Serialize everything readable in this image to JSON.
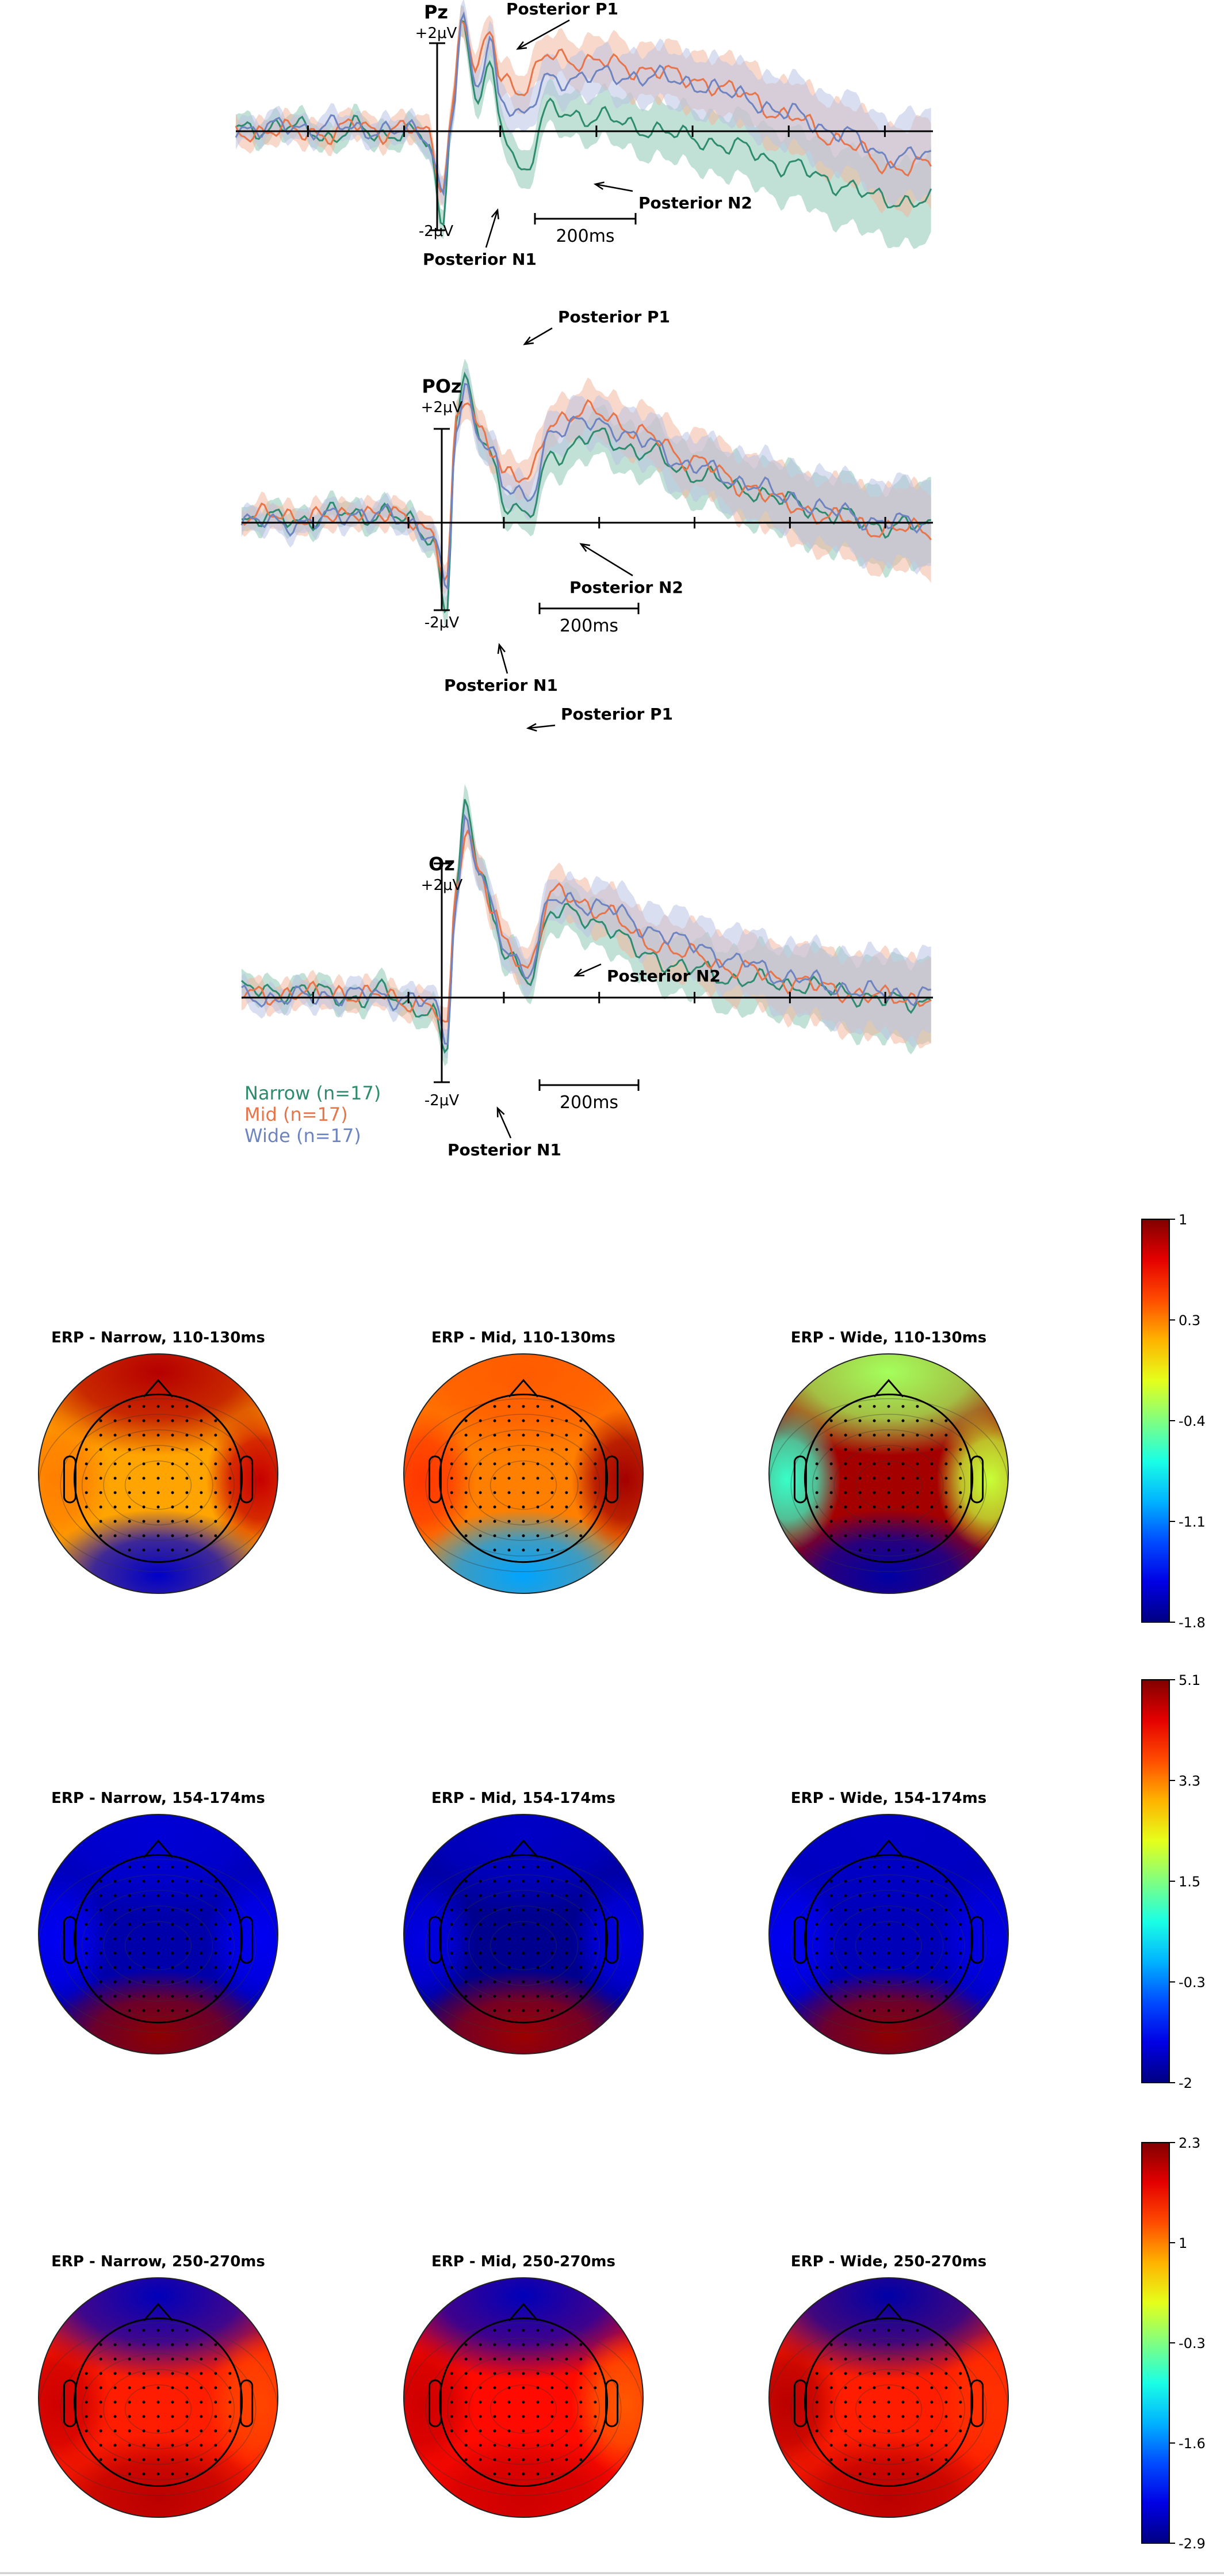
{
  "colors": {
    "narrow": "#2e8b6e",
    "mid": "#e8744a",
    "wide": "#6e84c0",
    "narrow_band": "#8fc9b5",
    "mid_band": "#f2b8a0",
    "wide_band": "#bac5e4",
    "axis": "#000000"
  },
  "legend": [
    {
      "key": "narrow",
      "label": "Narrow (n=17)"
    },
    {
      "key": "mid",
      "label": "Mid (n=17)"
    },
    {
      "key": "wide",
      "label": "Wide (n=17)"
    }
  ],
  "chart_data": [
    {
      "type": "line",
      "channel": "Pz",
      "amp_plus": "+2μV",
      "amp_minus": "-2μV",
      "time_bar": "200ms",
      "annotations": [
        {
          "label": "Posterior P1"
        },
        {
          "label": "Posterior N1"
        },
        {
          "label": "Posterior N2"
        }
      ],
      "x_unit": "ms",
      "x": [
        -200,
        -150,
        -100,
        -50,
        0,
        50,
        80,
        100,
        120,
        150,
        180,
        200,
        250,
        300,
        400,
        500,
        600,
        700,
        800,
        900,
        1000
      ],
      "series": [
        {
          "name": "Narrow (n=17)",
          "values": [
            0.1,
            -0.2,
            0.1,
            -0.1,
            0.0,
            -0.3,
            -2.8,
            0.8,
            3.2,
            0.9,
            1.8,
            0.2,
            -1.2,
            0.6,
            0.4,
            0.1,
            -0.2,
            -0.5,
            -1.0,
            -1.5,
            -2.0
          ]
        },
        {
          "name": "Mid (n=17)",
          "values": [
            0.0,
            -0.1,
            0.2,
            0.0,
            0.1,
            -0.1,
            -1.6,
            0.6,
            3.4,
            1.6,
            3.0,
            1.6,
            1.2,
            2.2,
            2.0,
            1.8,
            1.5,
            1.1,
            0.4,
            -0.2,
            -1.0
          ]
        },
        {
          "name": "Wide (n=17)",
          "values": [
            0.1,
            0.2,
            0.0,
            0.1,
            0.0,
            -0.2,
            -1.8,
            0.5,
            3.2,
            1.2,
            2.6,
            1.0,
            0.4,
            1.5,
            1.6,
            1.6,
            1.4,
            1.0,
            0.5,
            0.0,
            -0.7
          ]
        }
      ]
    },
    {
      "type": "line",
      "channel": "POz",
      "amp_plus": "+2μV",
      "amp_minus": "-2μV",
      "time_bar": "200ms",
      "annotations": [
        {
          "label": "Posterior P1"
        },
        {
          "label": "Posterior N1"
        },
        {
          "label": "Posterior N2"
        }
      ],
      "x_unit": "ms",
      "x": [
        -200,
        -150,
        -100,
        -50,
        0,
        50,
        80,
        100,
        120,
        150,
        180,
        200,
        250,
        300,
        400,
        500,
        600,
        700,
        800,
        900,
        1000
      ],
      "series": [
        {
          "name": "Narrow (n=17)",
          "values": [
            0.1,
            0.3,
            0.2,
            0.3,
            0.0,
            -0.4,
            -2.6,
            3.0,
            4.0,
            2.6,
            1.8,
            0.6,
            0.1,
            2.0,
            2.5,
            2.0,
            1.4,
            1.0,
            0.6,
            0.2,
            -0.1
          ]
        },
        {
          "name": "Mid (n=17)",
          "values": [
            0.2,
            0.1,
            0.4,
            0.2,
            0.1,
            -0.2,
            -1.8,
            2.8,
            3.6,
            2.7,
            2.2,
            1.4,
            1.2,
            3.0,
            3.2,
            2.5,
            1.8,
            1.1,
            0.5,
            0.1,
            -0.2
          ]
        },
        {
          "name": "Wide (n=17)",
          "values": [
            0.0,
            0.2,
            0.3,
            0.2,
            0.0,
            -0.3,
            -2.0,
            2.6,
            3.8,
            2.6,
            2.0,
            1.0,
            0.6,
            2.7,
            2.9,
            2.3,
            1.6,
            1.2,
            0.7,
            0.3,
            0.0
          ]
        }
      ]
    },
    {
      "type": "line",
      "channel": "Oz",
      "amp_plus": "+2μV",
      "amp_minus": "-2μV",
      "time_bar": "200ms",
      "annotations": [
        {
          "label": "Posterior P1"
        },
        {
          "label": "Posterior N2"
        },
        {
          "label": "Posterior N1"
        }
      ],
      "x_unit": "ms",
      "x": [
        -200,
        -150,
        -100,
        -50,
        0,
        50,
        80,
        100,
        120,
        150,
        180,
        200,
        250,
        300,
        400,
        500,
        600,
        700,
        800,
        900,
        1000
      ],
      "series": [
        {
          "name": "Narrow (n=17)",
          "values": [
            0.2,
            0.1,
            -0.1,
            0.2,
            -0.2,
            -0.5,
            -1.6,
            3.0,
            5.8,
            3.8,
            2.2,
            1.2,
            0.6,
            2.5,
            2.2,
            1.2,
            0.8,
            0.5,
            0.4,
            0.2,
            -0.1
          ]
        },
        {
          "name": "Mid (n=17)",
          "values": [
            0.1,
            0.2,
            0.0,
            0.1,
            -0.1,
            -0.3,
            -1.0,
            3.2,
            5.0,
            3.6,
            2.4,
            1.5,
            0.9,
            3.0,
            2.6,
            1.6,
            1.2,
            0.8,
            0.5,
            0.2,
            0.0
          ]
        },
        {
          "name": "Wide (n=17)",
          "values": [
            0.0,
            0.1,
            0.1,
            0.0,
            0.0,
            -0.2,
            -1.2,
            2.8,
            5.2,
            3.6,
            2.3,
            1.4,
            0.8,
            2.8,
            2.7,
            2.0,
            1.5,
            1.0,
            0.6,
            0.3,
            0.1
          ]
        }
      ]
    },
    {
      "type": "heatmap",
      "rows": [
        {
          "colorbar_ticks": [
            "1",
            "0.3",
            "-0.4",
            "-1.1",
            "-1.8"
          ],
          "range": [
            -1.8,
            1.0
          ],
          "maps": [
            {
              "title": "ERP - Narrow, 110-130ms",
              "front": 0.85,
              "center": 0.2,
              "occipital": -1.6,
              "left": 0.3,
              "right": 0.8
            },
            {
              "title": "ERP - Mid, 110-130ms",
              "front": 0.4,
              "center": 0.3,
              "occipital": -1.0,
              "left": 0.5,
              "right": 0.9
            },
            {
              "title": "ERP - Wide, 110-130ms",
              "front": -0.3,
              "center": 0.9,
              "occipital": -1.7,
              "left": -0.6,
              "right": -0.2
            }
          ]
        },
        {
          "colorbar_ticks": [
            "5.1",
            "3.3",
            "1.5",
            "-0.3",
            "-2"
          ],
          "range": [
            -2.0,
            5.1
          ],
          "maps": [
            {
              "title": "ERP - Narrow, 154-174ms",
              "front": -1.4,
              "center": -1.7,
              "occipital": 5.0,
              "left": -1.2,
              "right": -1.2
            },
            {
              "title": "ERP - Mid, 154-174ms",
              "front": -1.5,
              "center": -1.9,
              "occipital": 4.9,
              "left": -1.3,
              "right": -1.3
            },
            {
              "title": "ERP - Wide, 154-174ms",
              "front": -1.5,
              "center": -1.6,
              "occipital": 5.0,
              "left": -1.2,
              "right": -1.3
            }
          ]
        },
        {
          "colorbar_ticks": [
            "2.3",
            "1",
            "-0.3",
            "-1.6",
            "-2.9"
          ],
          "range": [
            -2.9,
            2.3
          ],
          "maps": [
            {
              "title": "ERP - Narrow, 250-270ms",
              "front": -2.6,
              "center": 1.5,
              "occipital": 2.0,
              "left": 1.9,
              "right": 1.3
            },
            {
              "title": "ERP - Mid, 250-270ms",
              "front": -2.6,
              "center": 1.6,
              "occipital": 1.9,
              "left": 1.9,
              "right": 1.2
            },
            {
              "title": "ERP - Wide, 250-270ms",
              "front": -2.7,
              "center": 1.5,
              "occipital": 2.0,
              "left": 2.0,
              "right": 1.4
            }
          ]
        }
      ]
    }
  ]
}
